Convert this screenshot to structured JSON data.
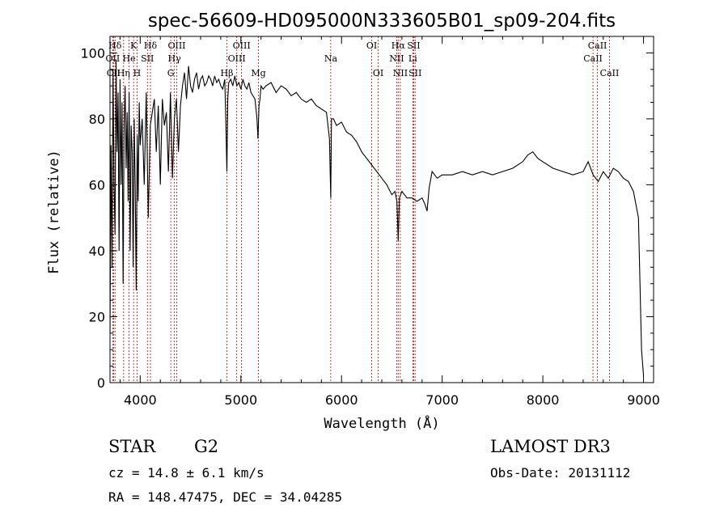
{
  "chart_data": {
    "type": "line",
    "title": "spec-56609-HD095000N333605B01_sp09-204.fits",
    "xlabel": "Wavelength (Å)",
    "ylabel": "Flux (relative)",
    "xlim": [
      3700,
      9100
    ],
    "ylim": [
      0,
      105
    ],
    "xticks": [
      4000,
      5000,
      6000,
      7000,
      8000,
      9000
    ],
    "yticks": [
      0,
      20,
      40,
      60,
      80,
      100
    ],
    "grid": false,
    "line_color": "#000000",
    "marker_color": "#cc0000",
    "spectral_lines": [
      {
        "name": "Hδ",
        "wavelength": 3750,
        "row": 1
      },
      {
        "name": "OII",
        "wavelength": 3727,
        "row": 2
      },
      {
        "name": "CII",
        "wavelength": 3735,
        "row": 3
      },
      {
        "name": "K",
        "wavelength": 3934,
        "row": 1
      },
      {
        "name": "He",
        "wavelength": 3889,
        "row": 2
      },
      {
        "name": "Hη",
        "wavelength": 3835,
        "row": 3
      },
      {
        "name": "Hδ",
        "wavelength": 4102,
        "row": 1
      },
      {
        "name": "SII",
        "wavelength": 4072,
        "row": 2
      },
      {
        "name": "H",
        "wavelength": 3969,
        "row": 3
      },
      {
        "name": "OIII",
        "wavelength": 4363,
        "row": 1
      },
      {
        "name": "Hγ",
        "wavelength": 4340,
        "row": 2
      },
      {
        "name": "G",
        "wavelength": 4304,
        "row": 3
      },
      {
        "name": "OIII",
        "wavelength": 5007,
        "row": 1
      },
      {
        "name": "OIII",
        "wavelength": 4959,
        "row": 2
      },
      {
        "name": "Hβ",
        "wavelength": 4861,
        "row": 3
      },
      {
        "name": "Mg",
        "wavelength": 5175,
        "row": 3
      },
      {
        "name": "Na",
        "wavelength": 5893,
        "row": 2
      },
      {
        "name": "OI",
        "wavelength": 6300,
        "row": 1
      },
      {
        "name": "OI",
        "wavelength": 6364,
        "row": 3
      },
      {
        "name": "Hα",
        "wavelength": 6563,
        "row": 1
      },
      {
        "name": "NII",
        "wavelength": 6548,
        "row": 2
      },
      {
        "name": "NII",
        "wavelength": 6584,
        "row": 3
      },
      {
        "name": "SII",
        "wavelength": 6717,
        "row": 1
      },
      {
        "name": "Li",
        "wavelength": 6708,
        "row": 2
      },
      {
        "name": "SII",
        "wavelength": 6731,
        "row": 3
      },
      {
        "name": "CaII",
        "wavelength": 8542,
        "row": 1
      },
      {
        "name": "CaII",
        "wavelength": 8498,
        "row": 2
      },
      {
        "name": "CaII",
        "wavelength": 8662,
        "row": 3
      }
    ],
    "series": [
      {
        "x": [
          3700,
          3710,
          3720,
          3730,
          3740,
          3750,
          3760,
          3770,
          3780,
          3790,
          3800,
          3810,
          3820,
          3830,
          3840,
          3850,
          3860,
          3870,
          3880,
          3890,
          3900,
          3910,
          3920,
          3930,
          3940,
          3950,
          3960,
          3970,
          3980,
          3990,
          4000,
          4020,
          4040,
          4060,
          4080,
          4100,
          4120,
          4140,
          4160,
          4180,
          4200,
          4220,
          4240,
          4260,
          4280,
          4300,
          4320,
          4340,
          4360,
          4380,
          4400,
          4420,
          4440,
          4460,
          4480,
          4500,
          4520,
          4540,
          4560,
          4580,
          4600,
          4620,
          4640,
          4660,
          4680,
          4700,
          4720,
          4740,
          4760,
          4780,
          4800,
          4820,
          4840,
          4850,
          4861,
          4870,
          4880,
          4900,
          4920,
          4940,
          4960,
          4980,
          5000,
          5020,
          5040,
          5060,
          5080,
          5100,
          5120,
          5140,
          5160,
          5170,
          5180,
          5190,
          5200,
          5220,
          5250,
          5300,
          5350,
          5400,
          5450,
          5500,
          5550,
          5600,
          5650,
          5700,
          5750,
          5800,
          5850,
          5880,
          5893,
          5900,
          5920,
          5950,
          6000,
          6050,
          6100,
          6150,
          6200,
          6250,
          6300,
          6350,
          6400,
          6450,
          6500,
          6530,
          6550,
          6563,
          6575,
          6600,
          6650,
          6700,
          6750,
          6800,
          6830,
          6850,
          6870,
          6900,
          6950,
          7000,
          7100,
          7200,
          7300,
          7400,
          7500,
          7600,
          7700,
          7800,
          7850,
          7900,
          7950,
          8000,
          8100,
          8200,
          8300,
          8400,
          8450,
          8500,
          8550,
          8600,
          8650,
          8700,
          8750,
          8800,
          8850,
          8900,
          8950,
          8980,
          9000
        ],
        "y": [
          15,
          72,
          35,
          95,
          60,
          45,
          98,
          70,
          88,
          40,
          92,
          60,
          85,
          30,
          78,
          90,
          65,
          82,
          55,
          88,
          40,
          78,
          70,
          35,
          80,
          60,
          28,
          75,
          55,
          85,
          72,
          80,
          60,
          88,
          50,
          78,
          82,
          86,
          70,
          84,
          60,
          86,
          78,
          82,
          64,
          88,
          62,
          80,
          86,
          70,
          84,
          90,
          94,
          86,
          96,
          90,
          88,
          92,
          94,
          89,
          92,
          93,
          90,
          91,
          93,
          92,
          90,
          93,
          91,
          92,
          90,
          89,
          92,
          80,
          64,
          86,
          91,
          92,
          90,
          93,
          90,
          91,
          89,
          92,
          90,
          89,
          91,
          88,
          87,
          86,
          80,
          74,
          84,
          86,
          90,
          89,
          90,
          91,
          88,
          90,
          89,
          87,
          88,
          86,
          85,
          86,
          84,
          83,
          82,
          74,
          56,
          80,
          80,
          78,
          79,
          76,
          75,
          73,
          70,
          68,
          66,
          64,
          62,
          60,
          57,
          58,
          55,
          43,
          56,
          58,
          56,
          56,
          55,
          56,
          54,
          52,
          59,
          64,
          62,
          63,
          63,
          64,
          63,
          64,
          63,
          64,
          65,
          67,
          69,
          70,
          68,
          67,
          65,
          64,
          63,
          64,
          67,
          63,
          61,
          64,
          62,
          65,
          64,
          62,
          61,
          58,
          50,
          10,
          2
        ]
      }
    ],
    "info": {
      "object_class": "STAR",
      "subclass": "G2",
      "survey": "LAMOST DR3",
      "cz": "cz = 14.8 ± 6.1 km/s",
      "obs_date": "Obs-Date: 20131112",
      "coords": "RA = 148.47475, DEC =  34.04285"
    }
  }
}
